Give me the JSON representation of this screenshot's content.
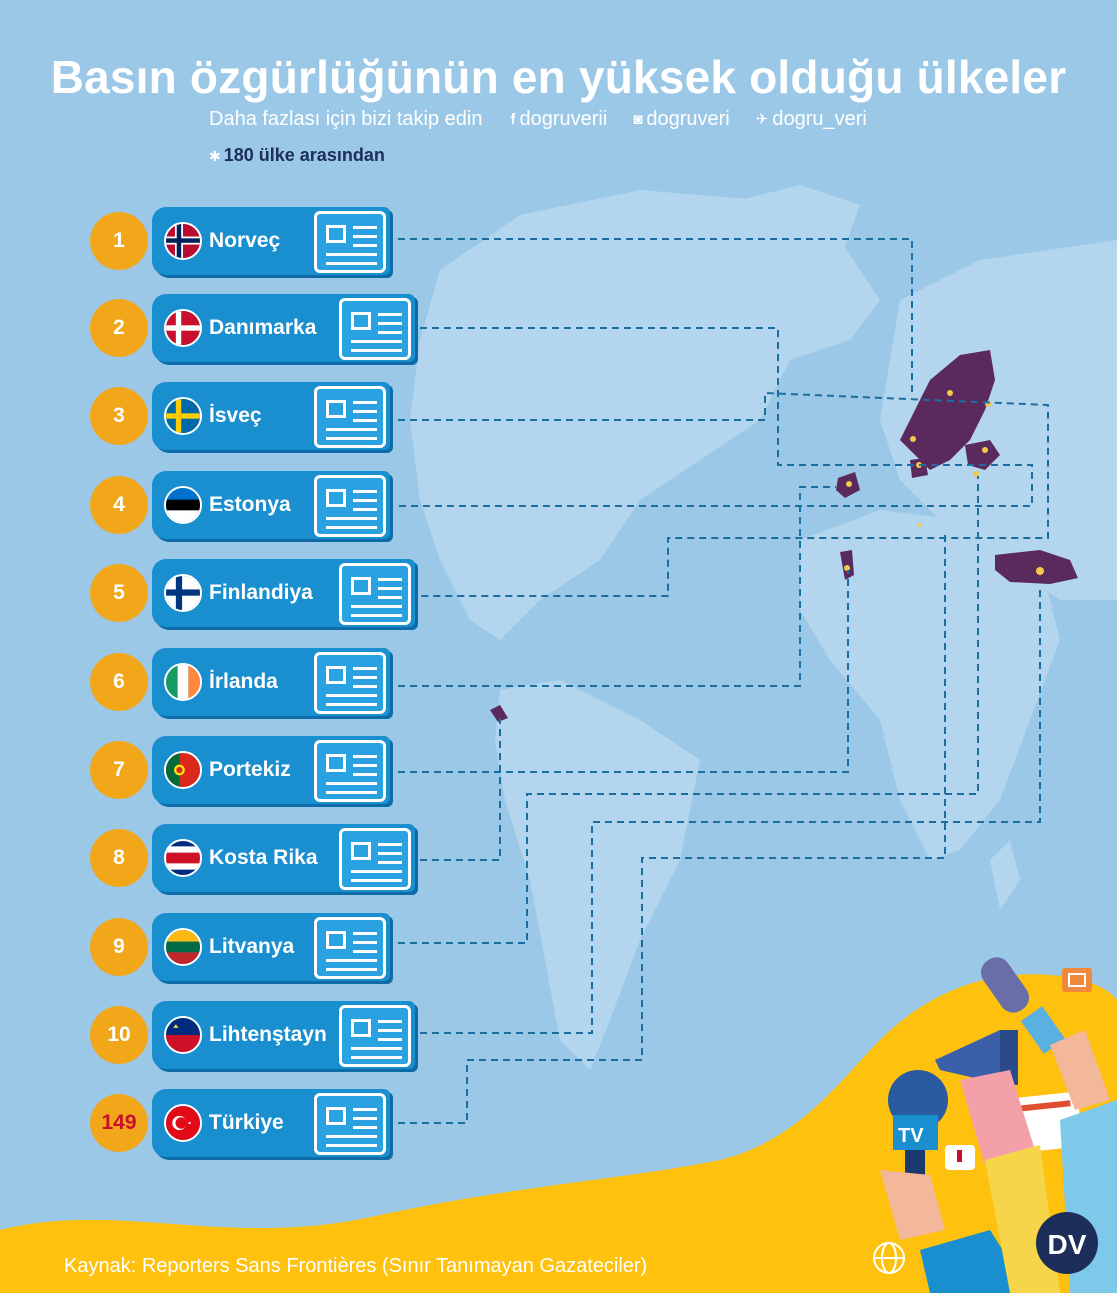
{
  "title": "Basın özgürlüğünün en yüksek olduğu ülkeler",
  "follow": {
    "text": "Daha fazlası için bizi takip edin",
    "facebook": "dogruverii",
    "instagram": "dogruveri",
    "twitter": "dogru_veri"
  },
  "note": "180 ülke arasından",
  "countries": [
    {
      "rank": "1",
      "name": "Norveç",
      "flag": "norway-flag"
    },
    {
      "rank": "2",
      "name": "Danımarka",
      "flag": "denmark-flag"
    },
    {
      "rank": "3",
      "name": "İsveç",
      "flag": "sweden-flag"
    },
    {
      "rank": "4",
      "name": "Estonya",
      "flag": "estonia-flag"
    },
    {
      "rank": "5",
      "name": "Finlandiya",
      "flag": "finland-flag"
    },
    {
      "rank": "6",
      "name": "İrlanda",
      "flag": "ireland-flag"
    },
    {
      "rank": "7",
      "name": "Portekiz",
      "flag": "portugal-flag"
    },
    {
      "rank": "8",
      "name": "Kosta Rika",
      "flag": "costa-rica-flag"
    },
    {
      "rank": "9",
      "name": "Litvanya",
      "flag": "lithuania-flag"
    },
    {
      "rank": "10",
      "name": "Lihtenştayn",
      "flag": "liechtenstein-flag"
    },
    {
      "rank": "149",
      "name": "Türkiye",
      "flag": "turkey-flag"
    }
  ],
  "badges": {
    "tv": "TV"
  },
  "logo": "DV",
  "source": "Kaynak: Reporters Sans Frontières (Sınır Tanımayan Gazateciler)",
  "colors": {
    "background": "#9ac8e6",
    "rank_circle": "#f2a71b",
    "pill": "#1a8fd0",
    "highlight_country": "#5a2a5c",
    "accent_yellow": "#fdc10e",
    "note_text": "#1e2e5a"
  }
}
